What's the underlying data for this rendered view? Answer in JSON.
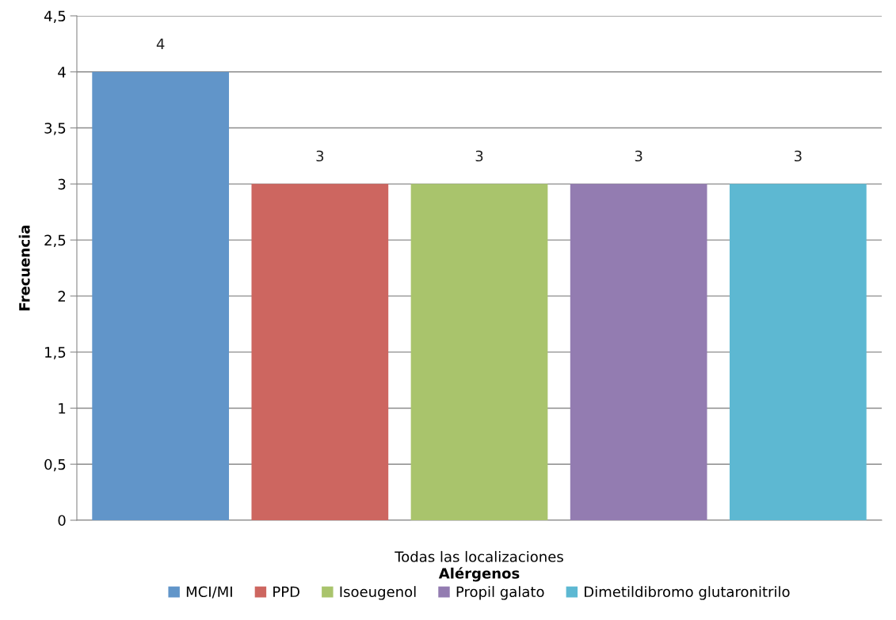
{
  "chart_data": {
    "type": "bar",
    "xlabel": "Alérgenos",
    "ylabel": "Frecuencia",
    "categories": [
      "Todas las localizaciones"
    ],
    "series": [
      {
        "name": "MCI/MI",
        "color": "#6195c9",
        "values": [
          4
        ]
      },
      {
        "name": "PPD",
        "color": "#cd6660",
        "values": [
          3
        ]
      },
      {
        "name": "Isoeugenol",
        "color": "#a9c46c",
        "values": [
          3
        ]
      },
      {
        "name": "Propil galato",
        "color": "#937cb1",
        "values": [
          3
        ]
      },
      {
        "name": "Dimetildibromo glutaronitrilo",
        "color": "#5db8d2",
        "values": [
          3
        ]
      }
    ],
    "ylim": [
      0,
      4.5
    ],
    "yticks": [
      0,
      {
        "value": 0.5,
        "label": "0,5"
      },
      1,
      {
        "value": 1.5,
        "label": "1,5"
      },
      2,
      {
        "value": 2.5,
        "label": "2,5"
      },
      3,
      {
        "value": 3.5,
        "label": "3,5"
      },
      4,
      {
        "value": 4.5,
        "label": "4,5"
      }
    ],
    "grid": "y",
    "legend": "bottom",
    "data_labels": true
  }
}
